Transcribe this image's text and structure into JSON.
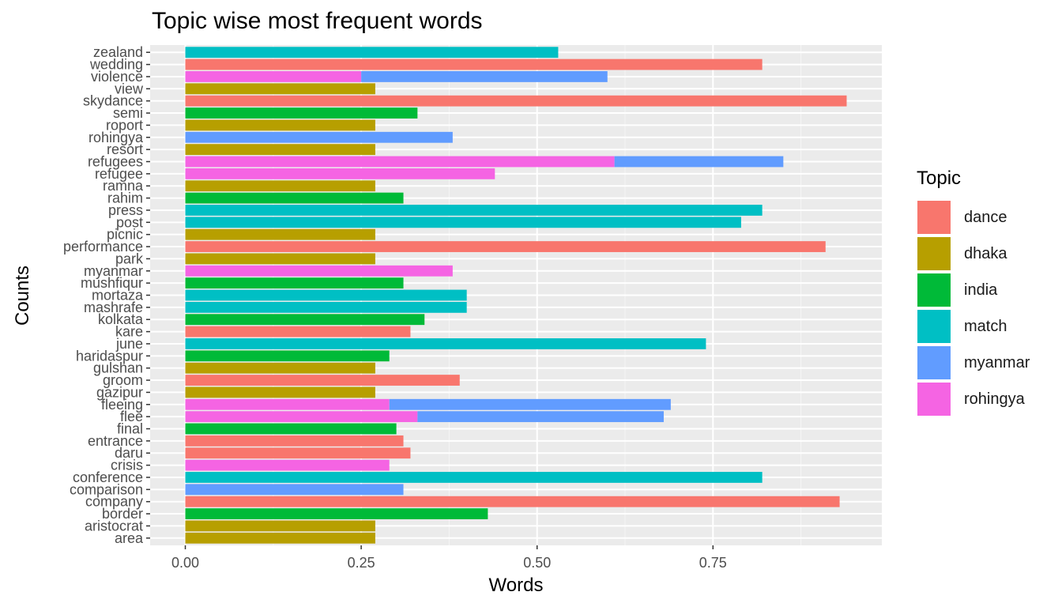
{
  "chart_data": {
    "type": "bar",
    "orientation": "horizontal",
    "stacked": true,
    "title": "Topic wise most frequent words",
    "xlabel": "Words",
    "ylabel": "Counts",
    "xlim": [
      -0.05,
      0.99
    ],
    "xticks": [
      0,
      0.25,
      0.5,
      0.75
    ],
    "xtick_labels": [
      "0.00",
      "0.25",
      "0.50",
      "0.75"
    ],
    "grid": true,
    "legend": {
      "title": "Topic",
      "position": "right"
    },
    "series": [
      {
        "name": "dance",
        "color": "#F8766D"
      },
      {
        "name": "dhaka",
        "color": "#B79F00"
      },
      {
        "name": "india",
        "color": "#00BA38"
      },
      {
        "name": "match",
        "color": "#00BFC4"
      },
      {
        "name": "myanmar",
        "color": "#619CFF"
      },
      {
        "name": "rohingya",
        "color": "#F564E3"
      }
    ],
    "categories": [
      "area",
      "aristocrat",
      "border",
      "company",
      "comparison",
      "conference",
      "crisis",
      "daru",
      "entrance",
      "final",
      "flee",
      "fleeing",
      "gazipur",
      "groom",
      "gulshan",
      "haridaspur",
      "june",
      "kare",
      "kolkata",
      "mashrafe",
      "mortaza",
      "mushfiqur",
      "myanmar",
      "park",
      "performance",
      "picnic",
      "post",
      "press",
      "rahim",
      "ramna",
      "refugee",
      "refugees",
      "resort",
      "rohingya",
      "roport",
      "semi",
      "skydance",
      "view",
      "violence",
      "wedding",
      "zealand"
    ],
    "bars": [
      {
        "word": "area",
        "segments": [
          {
            "topic": "dhaka",
            "value": 0.27
          }
        ]
      },
      {
        "word": "aristocrat",
        "segments": [
          {
            "topic": "dhaka",
            "value": 0.27
          }
        ]
      },
      {
        "word": "border",
        "segments": [
          {
            "topic": "india",
            "value": 0.43
          }
        ]
      },
      {
        "word": "company",
        "segments": [
          {
            "topic": "dance",
            "value": 0.93
          }
        ]
      },
      {
        "word": "comparison",
        "segments": [
          {
            "topic": "myanmar",
            "value": 0.31
          }
        ]
      },
      {
        "word": "conference",
        "segments": [
          {
            "topic": "match",
            "value": 0.82
          }
        ]
      },
      {
        "word": "crisis",
        "segments": [
          {
            "topic": "rohingya",
            "value": 0.29
          }
        ]
      },
      {
        "word": "daru",
        "segments": [
          {
            "topic": "dance",
            "value": 0.32
          }
        ]
      },
      {
        "word": "entrance",
        "segments": [
          {
            "topic": "dance",
            "value": 0.31
          }
        ]
      },
      {
        "word": "final",
        "segments": [
          {
            "topic": "india",
            "value": 0.3
          }
        ]
      },
      {
        "word": "flee",
        "segments": [
          {
            "topic": "rohingya",
            "value": 0.33
          },
          {
            "topic": "myanmar",
            "value": 0.35
          }
        ]
      },
      {
        "word": "fleeing",
        "segments": [
          {
            "topic": "rohingya",
            "value": 0.29
          },
          {
            "topic": "myanmar",
            "value": 0.4
          }
        ]
      },
      {
        "word": "gazipur",
        "segments": [
          {
            "topic": "dhaka",
            "value": 0.27
          }
        ]
      },
      {
        "word": "groom",
        "segments": [
          {
            "topic": "dance",
            "value": 0.39
          }
        ]
      },
      {
        "word": "gulshan",
        "segments": [
          {
            "topic": "dhaka",
            "value": 0.27
          }
        ]
      },
      {
        "word": "haridaspur",
        "segments": [
          {
            "topic": "india",
            "value": 0.29
          }
        ]
      },
      {
        "word": "june",
        "segments": [
          {
            "topic": "match",
            "value": 0.74
          }
        ]
      },
      {
        "word": "kare",
        "segments": [
          {
            "topic": "dance",
            "value": 0.32
          }
        ]
      },
      {
        "word": "kolkata",
        "segments": [
          {
            "topic": "india",
            "value": 0.34
          }
        ]
      },
      {
        "word": "mashrafe",
        "segments": [
          {
            "topic": "match",
            "value": 0.4
          }
        ]
      },
      {
        "word": "mortaza",
        "segments": [
          {
            "topic": "match",
            "value": 0.4
          }
        ]
      },
      {
        "word": "mushfiqur",
        "segments": [
          {
            "topic": "india",
            "value": 0.31
          }
        ]
      },
      {
        "word": "myanmar",
        "segments": [
          {
            "topic": "rohingya",
            "value": 0.38
          }
        ]
      },
      {
        "word": "park",
        "segments": [
          {
            "topic": "dhaka",
            "value": 0.27
          }
        ]
      },
      {
        "word": "performance",
        "segments": [
          {
            "topic": "dance",
            "value": 0.91
          }
        ]
      },
      {
        "word": "picnic",
        "segments": [
          {
            "topic": "dhaka",
            "value": 0.27
          }
        ]
      },
      {
        "word": "post",
        "segments": [
          {
            "topic": "match",
            "value": 0.79
          }
        ]
      },
      {
        "word": "press",
        "segments": [
          {
            "topic": "match",
            "value": 0.82
          }
        ]
      },
      {
        "word": "rahim",
        "segments": [
          {
            "topic": "india",
            "value": 0.31
          }
        ]
      },
      {
        "word": "ramna",
        "segments": [
          {
            "topic": "dhaka",
            "value": 0.27
          }
        ]
      },
      {
        "word": "refugee",
        "segments": [
          {
            "topic": "rohingya",
            "value": 0.44
          }
        ]
      },
      {
        "word": "refugees",
        "segments": [
          {
            "topic": "rohingya",
            "value": 0.61
          },
          {
            "topic": "myanmar",
            "value": 0.24
          }
        ]
      },
      {
        "word": "resort",
        "segments": [
          {
            "topic": "dhaka",
            "value": 0.27
          }
        ]
      },
      {
        "word": "rohingya",
        "segments": [
          {
            "topic": "myanmar",
            "value": 0.38
          }
        ]
      },
      {
        "word": "roport",
        "segments": [
          {
            "topic": "dhaka",
            "value": 0.27
          }
        ]
      },
      {
        "word": "semi",
        "segments": [
          {
            "topic": "india",
            "value": 0.33
          }
        ]
      },
      {
        "word": "skydance",
        "segments": [
          {
            "topic": "dance",
            "value": 0.94
          }
        ]
      },
      {
        "word": "view",
        "segments": [
          {
            "topic": "dhaka",
            "value": 0.27
          }
        ]
      },
      {
        "word": "violence",
        "segments": [
          {
            "topic": "rohingya",
            "value": 0.25
          },
          {
            "topic": "myanmar",
            "value": 0.35
          }
        ]
      },
      {
        "word": "wedding",
        "segments": [
          {
            "topic": "dance",
            "value": 0.82
          }
        ]
      },
      {
        "word": "zealand",
        "segments": [
          {
            "topic": "match",
            "value": 0.53
          }
        ]
      }
    ]
  }
}
